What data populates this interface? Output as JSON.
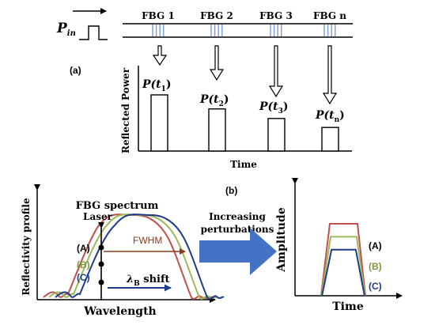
{
  "panel_a": {
    "label": "(a)",
    "input_pulse": {
      "symbol": "P",
      "subscript": "in"
    },
    "gratings": [
      "FBG 1",
      "FBG 2",
      "FBG 3",
      "FBG n"
    ],
    "reflections": [
      {
        "symbol": "P(",
        "var": "t",
        "sub": "1",
        "close": ")"
      },
      {
        "symbol": "P(",
        "var": "t",
        "sub": "2",
        "close": ")"
      },
      {
        "symbol": "P(",
        "var": "t",
        "sub": "3",
        "close": ")"
      },
      {
        "symbol": "P(",
        "var": "t",
        "sub": "n",
        "close": ")"
      }
    ],
    "reflected_power_levels": [
      1.0,
      0.75,
      0.58,
      0.42
    ],
    "y_axis_label": "Reflected Power",
    "x_axis_label": "Time"
  },
  "panel_b": {
    "label": "(b)",
    "spectrum_title": "FBG spectrum",
    "laser_label": "Laser",
    "fwhm_label": "FWHM",
    "shift_label": {
      "symbol": "λ",
      "sub": "B",
      "text": " shift"
    },
    "points": [
      "(A)",
      "(B)",
      "(C)"
    ],
    "y_axis_label": "Reflectivity profile",
    "x_axis_label": "Wavelength",
    "arrow_text_line1": "Increasing",
    "arrow_text_line2": "perturbations",
    "amplitude_axis_label": "Amplitude",
    "amplitude_time_label": "Time",
    "amplitude_legend": [
      "(A)",
      "(B)",
      "(C)"
    ],
    "amplitude_levels": [
      1.0,
      0.82,
      0.64
    ]
  },
  "colors": {
    "grating_lines": "#7b9bd6",
    "arrow_fill": "#4472c4",
    "curve_a": "#c0504d",
    "curve_b": "#9bbb59",
    "curve_c": "#1f3c88",
    "fwhm_arrow": "#8b3a1a",
    "shift_arrow": "#1f3c88"
  }
}
